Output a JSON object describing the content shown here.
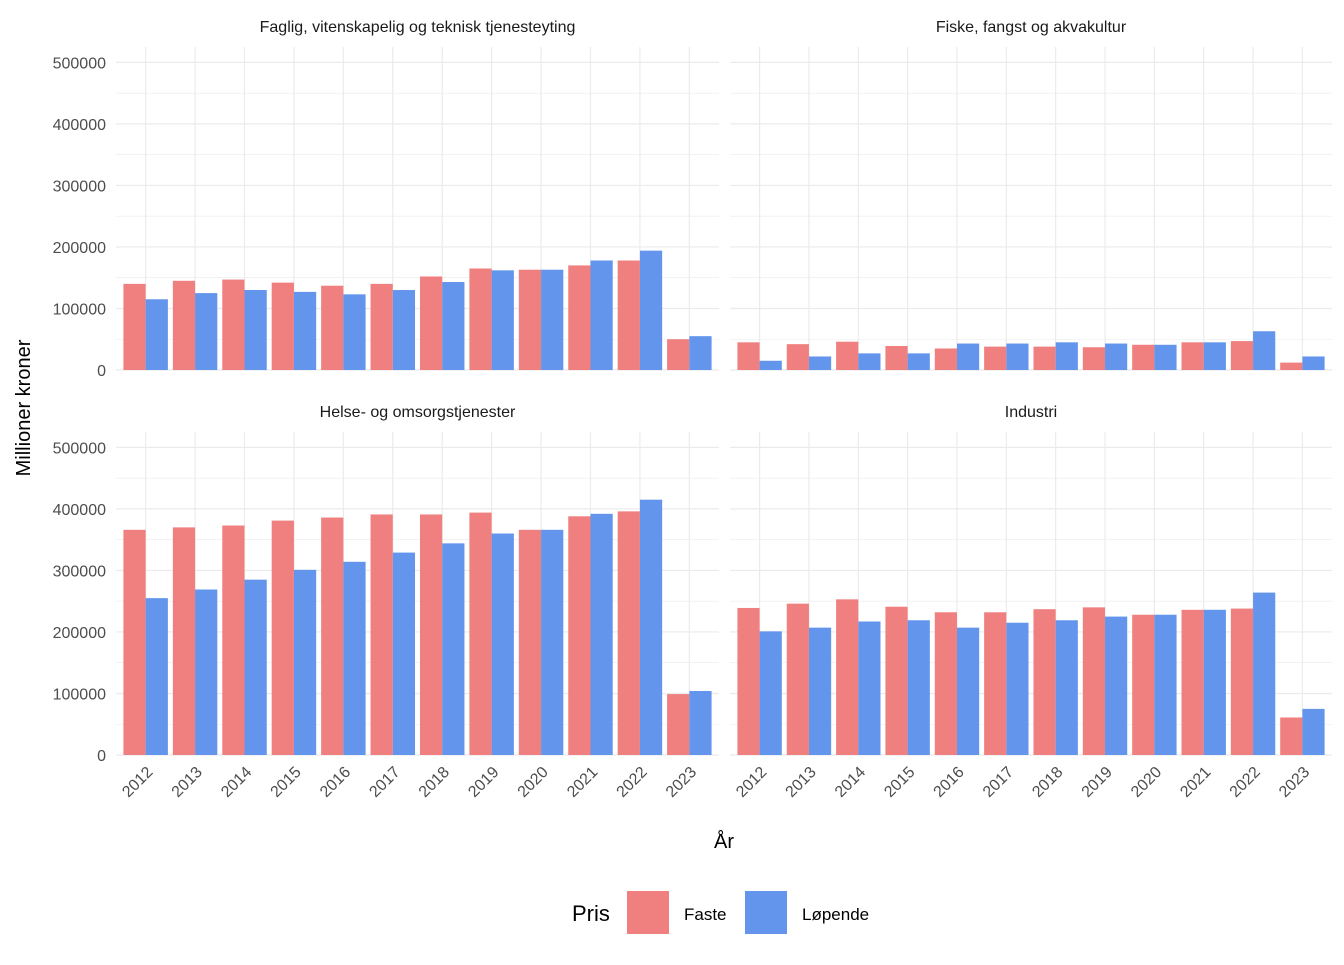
{
  "chart_data": {
    "type": "bar",
    "layout": "facet-grid 2x2, grouped bars",
    "xlabel": "År",
    "ylabel": "Millioner kroner",
    "ylim": [
      0,
      525000
    ],
    "yticks": [
      "0",
      "100000",
      "200000",
      "300000",
      "400000",
      "500000"
    ],
    "categories": [
      "2012",
      "2013",
      "2014",
      "2015",
      "2016",
      "2017",
      "2018",
      "2019",
      "2020",
      "2021",
      "2022",
      "2023"
    ],
    "legend": {
      "title": "Pris",
      "position": "bottom",
      "entries": [
        {
          "name": "Faste",
          "color": "#F08080"
        },
        {
          "name": "Løpende",
          "color": "#6495ED"
        }
      ]
    },
    "grid": true,
    "facets": [
      {
        "title": "Faglig, vitenskapelig og teknisk tjenesteyting",
        "series": [
          {
            "name": "Faste",
            "color": "#F08080",
            "values": [
              140000,
              145000,
              147000,
              142000,
              137000,
              140000,
              152000,
              165000,
              163000,
              170000,
              178000,
              50000
            ]
          },
          {
            "name": "Løpende",
            "color": "#6495ED",
            "values": [
              115000,
              125000,
              130000,
              127000,
              123000,
              130000,
              143000,
              162000,
              163000,
              178000,
              194000,
              55000
            ]
          }
        ]
      },
      {
        "title": "Fiske, fangst og akvakultur",
        "series": [
          {
            "name": "Faste",
            "color": "#F08080",
            "values": [
              45000,
              42000,
              46000,
              39000,
              35000,
              38000,
              38000,
              37000,
              41000,
              45000,
              47000,
              12000
            ]
          },
          {
            "name": "Løpende",
            "color": "#6495ED",
            "values": [
              15000,
              22000,
              27000,
              27000,
              43000,
              43000,
              45000,
              43000,
              41000,
              45000,
              63000,
              22000
            ]
          }
        ]
      },
      {
        "title": "Helse- og omsorgstjenester",
        "series": [
          {
            "name": "Faste",
            "color": "#F08080",
            "values": [
              366000,
              370000,
              373000,
              381000,
              386000,
              391000,
              391000,
              394000,
              366000,
              388000,
              396000,
              99000
            ]
          },
          {
            "name": "Løpende",
            "color": "#6495ED",
            "values": [
              255000,
              269000,
              285000,
              301000,
              314000,
              329000,
              344000,
              360000,
              366000,
              392000,
              415000,
              104000
            ]
          }
        ]
      },
      {
        "title": "Industri",
        "series": [
          {
            "name": "Faste",
            "color": "#F08080",
            "values": [
              239000,
              246000,
              253000,
              241000,
              232000,
              232000,
              237000,
              240000,
              228000,
              236000,
              238000,
              61000
            ]
          },
          {
            "name": "Løpende",
            "color": "#6495ED",
            "values": [
              201000,
              207000,
              217000,
              219000,
              207000,
              215000,
              219000,
              225000,
              228000,
              236000,
              264000,
              75000
            ]
          }
        ]
      }
    ]
  }
}
